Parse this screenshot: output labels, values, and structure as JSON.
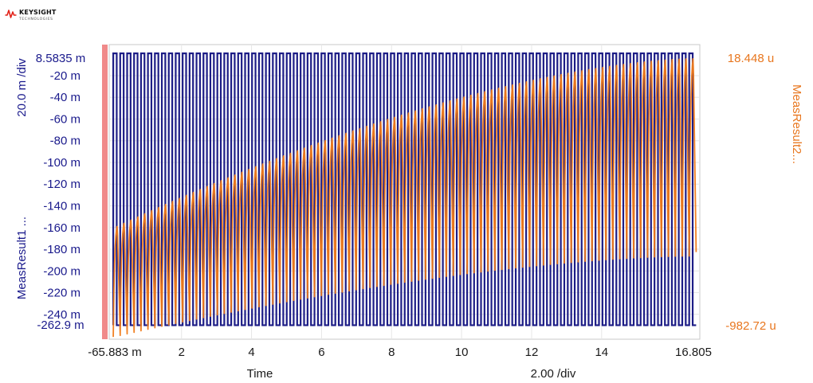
{
  "logo": {
    "brand": "KEYSIGHT",
    "sub": "TECHNOLOGIES"
  },
  "colors": {
    "left_axis": "#1a1a8c",
    "right_axis": "#e8761e",
    "trace1": "#1d1d86",
    "trace2": "#f07a18",
    "frame": "#c8c8c8",
    "grid": "#e6e6e6",
    "marker": "#f08a8a"
  },
  "chart_data": {
    "type": "line",
    "y_left": {
      "label": "MeasResult1 ...",
      "scale_label": "20.0 m /div",
      "top_label": "8.5835 m",
      "bottom_label": "-262.9 m",
      "range": [
        -262.9,
        8.5835
      ],
      "ticks": [
        -20,
        -40,
        -60,
        -80,
        -100,
        -120,
        -140,
        -160,
        -180,
        -200,
        -220,
        -240
      ],
      "tick_labels": [
        "-20 m",
        "-40 m",
        "-60 m",
        "-80 m",
        "-100 m",
        "-120 m",
        "-140 m",
        "-160 m",
        "-180 m",
        "-200 m",
        "-220 m",
        "-240 m"
      ]
    },
    "y_right": {
      "label": "MeasResult2...",
      "top_label": "18.448 u",
      "bottom_label": "-982.72 u",
      "range": [
        -982.72,
        18.448
      ]
    },
    "x": {
      "label": "Time",
      "scale_label": "2.00  /div",
      "left_label": "-65.883 m",
      "right_label": "16.805",
      "range": [
        -0.065883,
        16.805
      ],
      "ticks": [
        2,
        4,
        6,
        8,
        10,
        12,
        14
      ],
      "tick_labels": [
        "2",
        "4",
        "6",
        "8",
        "10",
        "12",
        "14"
      ]
    },
    "series": [
      {
        "name": "MeasResult1 ...",
        "axis": "left",
        "shape": "square wave",
        "high": 0.5,
        "low": -250,
        "cycles": 84,
        "x_start": 0.05,
        "x_end": 16.7
      },
      {
        "name": "MeasResult2...",
        "axis": "right",
        "shape": "sawtooth (exponential rise, fast drop) with baseline creeping upward",
        "high_start": -600,
        "high_end": -30,
        "low_start": -975,
        "low_end": -700,
        "x_start": 0.05,
        "x_end": 16.7
      }
    ]
  }
}
